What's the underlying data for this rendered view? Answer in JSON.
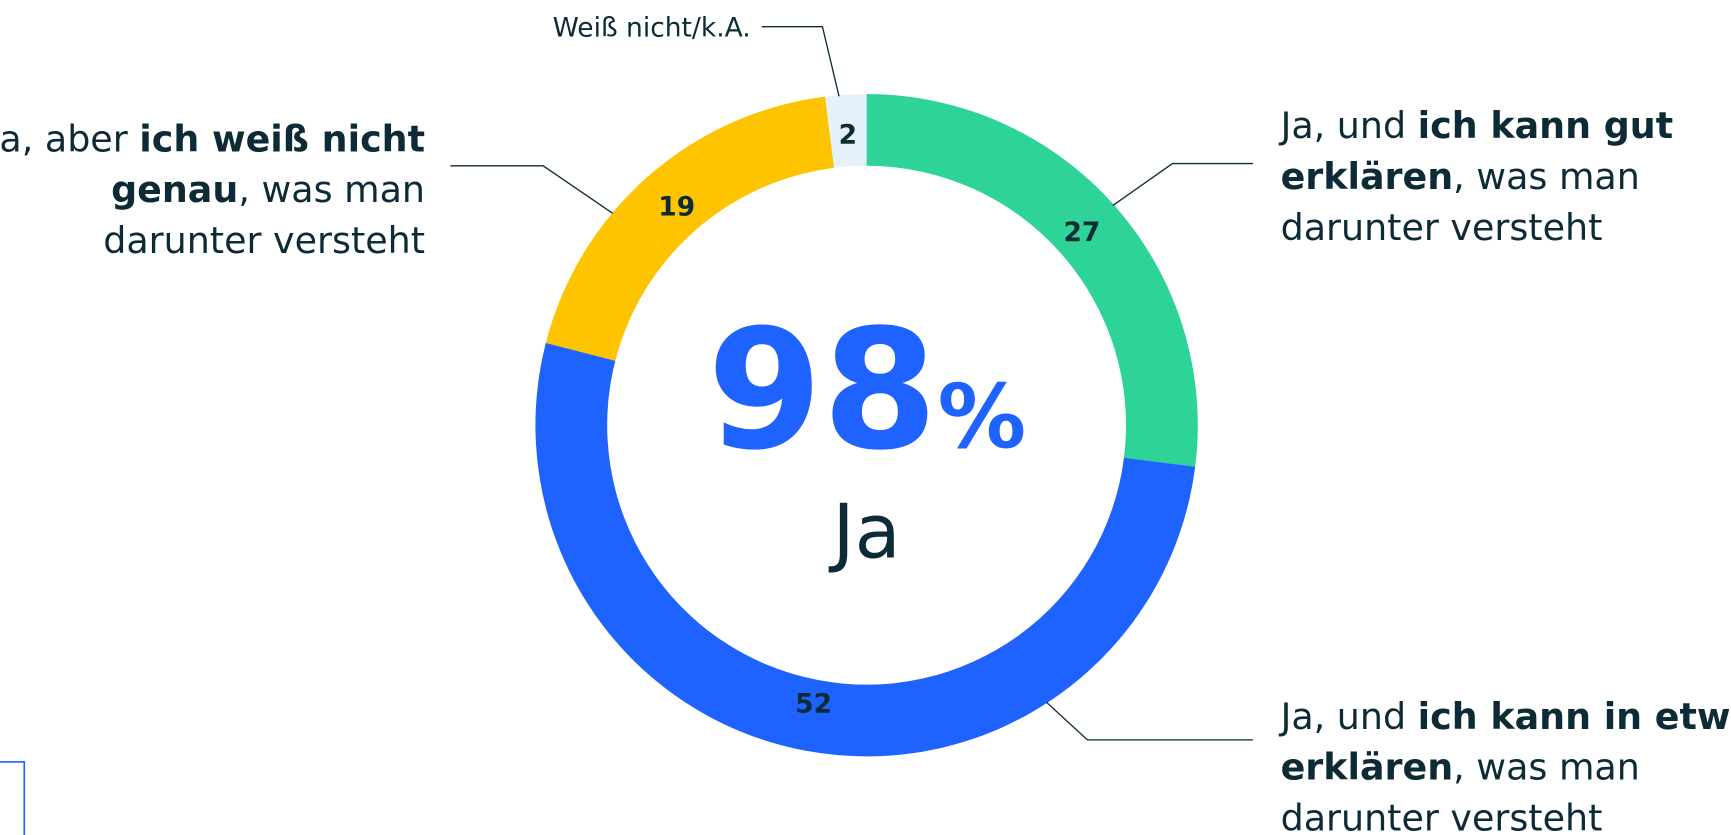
{
  "chart_data": {
    "type": "donut",
    "categories": [
      {
        "lines": [
          [
            {
              "text": "Ja, und "
            },
            {
              "text": "ich kann gut",
              "bold": true
            }
          ],
          [
            {
              "text": "erklären",
              "bold": true
            },
            {
              "text": ", was man"
            }
          ],
          [
            {
              "text": "darunter versteht"
            }
          ]
        ]
      },
      {
        "lines": [
          [
            {
              "text": "Ja, und "
            },
            {
              "text": "ich kann in etwa",
              "bold": true
            }
          ],
          [
            {
              "text": "erklären",
              "bold": true
            },
            {
              "text": ", was man"
            }
          ],
          [
            {
              "text": "darunter versteht"
            }
          ]
        ]
      },
      {
        "lines": [
          [
            {
              "text": "Ja, aber "
            },
            {
              "text": "ich weiß nicht",
              "bold": true
            }
          ],
          [
            {
              "text": "genau",
              "bold": true
            },
            {
              "text": ", was man"
            }
          ],
          [
            {
              "text": "darunter versteht"
            }
          ]
        ]
      },
      {
        "lines": [
          [
            {
              "text": "Weiß nicht/k.A."
            }
          ]
        ]
      }
    ],
    "values": [
      27,
      52,
      19,
      2
    ],
    "colors": [
      "#2ed398",
      "#1e62ff",
      "#ffc400",
      "#e6f2fb"
    ],
    "center_number": "98",
    "center_unit": "%",
    "center_text": "Ja"
  }
}
